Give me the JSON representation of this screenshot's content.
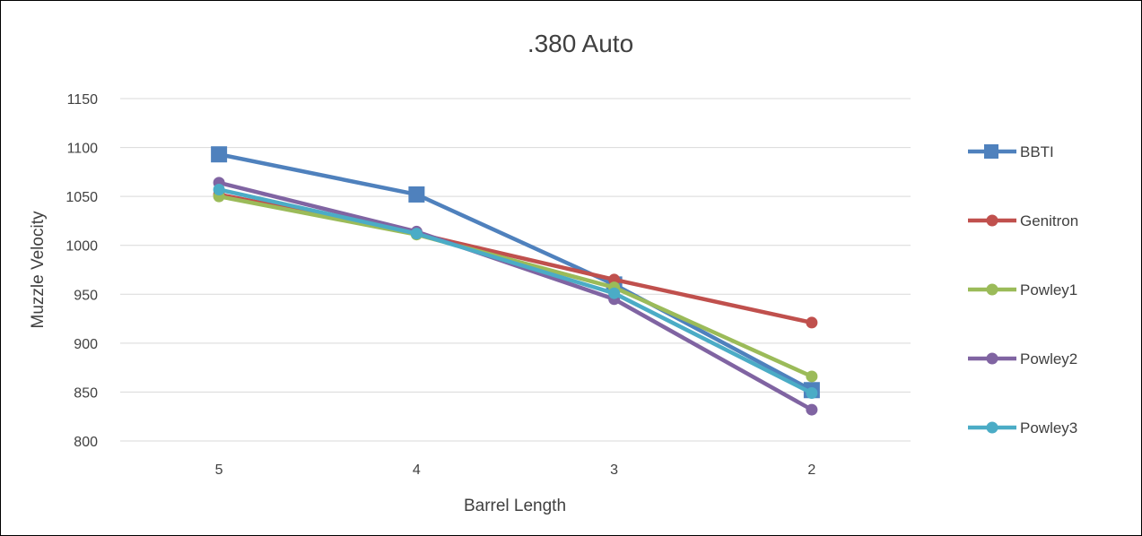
{
  "chart_data": {
    "type": "line",
    "title": ".380 Auto",
    "xlabel": "Barrel Length",
    "ylabel": "Muzzle Velocity",
    "categories": [
      "5",
      "4",
      "3",
      "2"
    ],
    "ylim": [
      800,
      1150
    ],
    "yticks": [
      800,
      850,
      900,
      950,
      1000,
      1050,
      1100,
      1150
    ],
    "grid": true,
    "legend": "right",
    "series": [
      {
        "name": "BBTI",
        "color": "#4F81BD",
        "marker": "square",
        "values": [
          1093,
          1052,
          960,
          852
        ]
      },
      {
        "name": "Genitron",
        "color": "#C0504D",
        "marker": "circle",
        "values": [
          1052,
          1012,
          965,
          921
        ]
      },
      {
        "name": "Powley1",
        "color": "#9BBB59",
        "marker": "circle",
        "values": [
          1050,
          1011,
          957,
          866
        ]
      },
      {
        "name": "Powley2",
        "color": "#8064A2",
        "marker": "circle",
        "values": [
          1064,
          1014,
          945,
          832
        ]
      },
      {
        "name": "Powley3",
        "color": "#4BACC6",
        "marker": "circle",
        "values": [
          1057,
          1012,
          951,
          849
        ]
      }
    ]
  }
}
